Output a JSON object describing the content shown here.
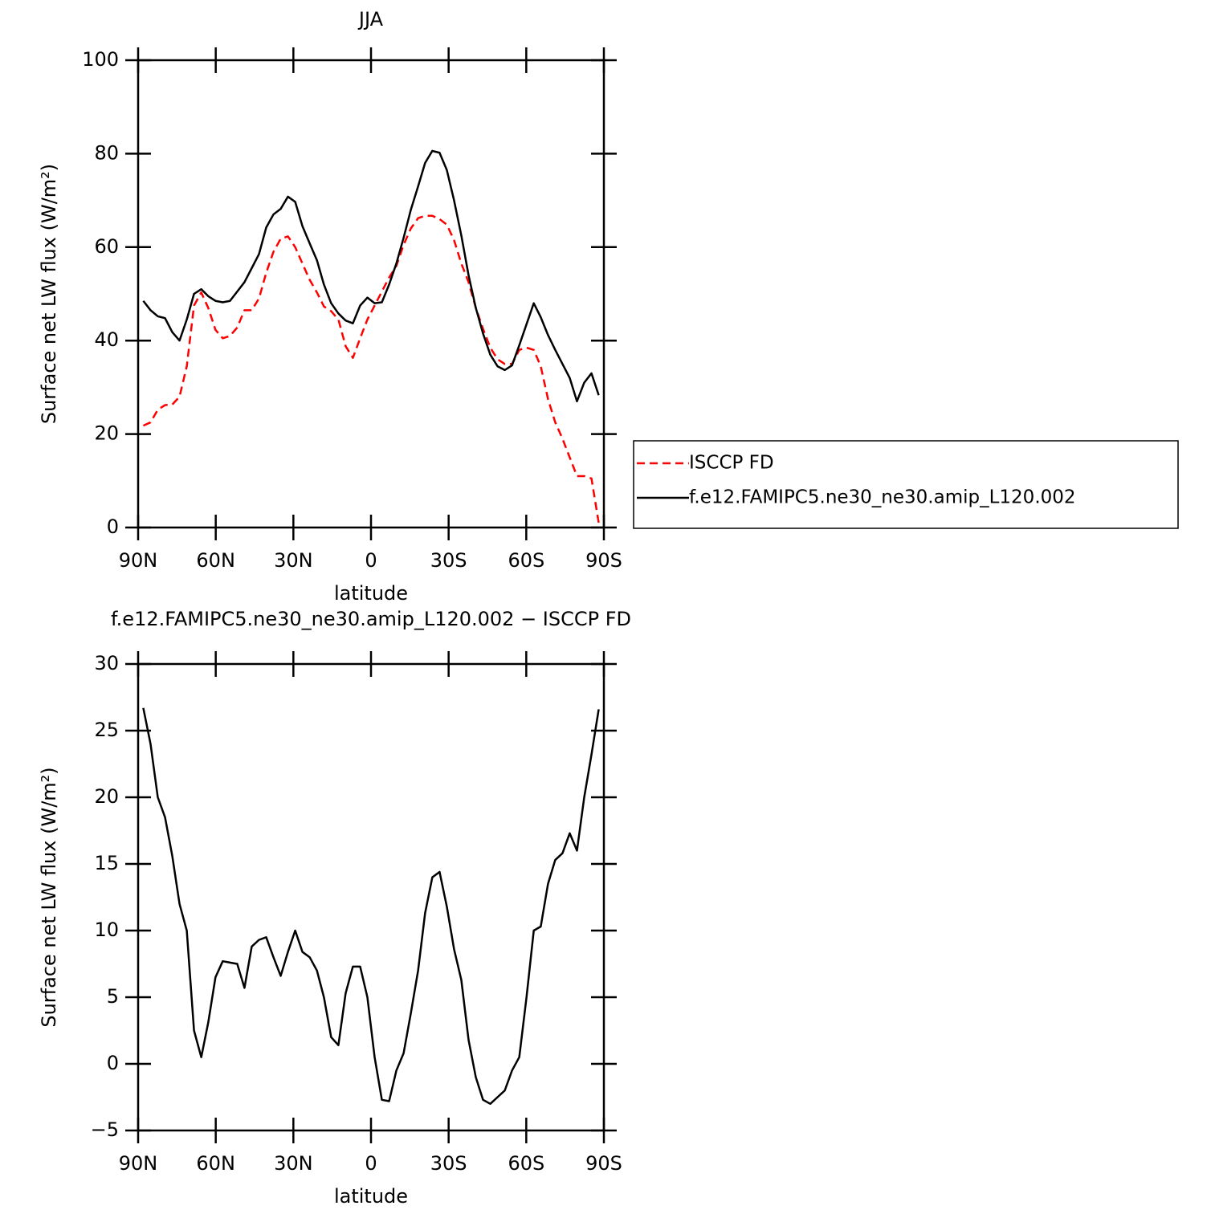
{
  "chart_data": [
    {
      "type": "line",
      "title": "JJA",
      "x_label": "latitude",
      "y_label": "Surface net LW flux (W/m²)",
      "x": [
        88.0,
        85.2,
        82.4,
        79.6,
        76.8,
        74.0,
        71.2,
        68.4,
        65.6,
        62.9,
        60.1,
        57.3,
        54.5,
        51.7,
        48.9,
        46.1,
        43.3,
        40.5,
        37.7,
        34.9,
        32.1,
        29.3,
        26.5,
        23.7,
        20.9,
        18.2,
        15.4,
        12.6,
        9.8,
        7.0,
        4.2,
        1.4,
        -1.4,
        -4.2,
        -7.0,
        -9.8,
        -12.6,
        -15.4,
        -18.2,
        -20.9,
        -23.7,
        -26.5,
        -29.3,
        -32.1,
        -34.9,
        -37.7,
        -40.5,
        -43.3,
        -46.1,
        -48.9,
        -51.7,
        -54.5,
        -57.3,
        -60.1,
        -62.9,
        -65.6,
        -68.4,
        -71.2,
        -74.0,
        -76.8,
        -79.6,
        -82.4,
        -85.2,
        -88.0
      ],
      "series": [
        {
          "name": "ISCCP FD",
          "color": "#ff0000",
          "dashed": true,
          "values": [
            21.8,
            22.5,
            25.2,
            26.2,
            26.3,
            28.0,
            34.5,
            47.5,
            50.3,
            47.0,
            42.3,
            40.5,
            41.0,
            42.8,
            46.5,
            46.5,
            49.0,
            54.5,
            59.0,
            61.8,
            62.3,
            60.0,
            56.5,
            53.0,
            50.3,
            47.3,
            46.3,
            44.5,
            38.8,
            36.3,
            40.5,
            44.5,
            47.5,
            50.5,
            53.5,
            56.0,
            60.5,
            64.0,
            66.2,
            66.7,
            66.7,
            66.0,
            64.8,
            61.5,
            56.5,
            52.5,
            47.0,
            42.5,
            38.5,
            36.0,
            35.0,
            35.0,
            38.0,
            38.5,
            38.0,
            34.5,
            27.5,
            22.5,
            19.0,
            15.0,
            11.0,
            11.0,
            10.5,
            1.0
          ]
        },
        {
          "name": "f.e12.FAMIPC5.ne30_ne30.amip_L120.002",
          "color": "#000000",
          "dashed": false,
          "values": [
            48.5,
            46.5,
            45.2,
            44.8,
            41.8,
            40.0,
            44.5,
            50.0,
            51.0,
            49.5,
            48.5,
            48.2,
            48.5,
            50.5,
            52.5,
            55.5,
            58.5,
            64.2,
            67.0,
            68.2,
            70.8,
            69.7,
            64.5,
            60.8,
            57.2,
            52.0,
            48.0,
            45.8,
            44.3,
            43.7,
            47.5,
            49.2,
            48.0,
            48.2,
            52.0,
            56.5,
            62.0,
            68.0,
            73.0,
            78.0,
            80.6,
            80.2,
            76.5,
            70.0,
            62.5,
            54.0,
            47.0,
            41.5,
            37.0,
            34.5,
            33.7,
            34.7,
            39.0,
            43.5,
            48.0,
            45.0,
            41.2,
            38.0,
            35.0,
            32.0,
            27.0,
            31.0,
            33.0,
            28.3
          ]
        }
      ],
      "xlim": [
        90,
        -90
      ],
      "xticks": [
        {
          "value": 90,
          "label": "90N"
        },
        {
          "value": 60,
          "label": "60N"
        },
        {
          "value": 30,
          "label": "30N"
        },
        0,
        {
          "value": -30,
          "label": "30S"
        },
        {
          "value": -60,
          "label": "60S"
        },
        {
          "value": -90,
          "label": "90S"
        }
      ],
      "ylim": [
        0,
        100
      ],
      "yticks": [
        0,
        20,
        40,
        60,
        80,
        100
      ],
      "legend": "right"
    },
    {
      "type": "line",
      "title": "f.e12.FAMIPC5.ne30_ne30.amip_L120.002 − ISCCP FD",
      "x_label": "latitude",
      "y_label": "Surface net LW flux (W/m²)",
      "x": [
        88.0,
        85.2,
        82.4,
        79.6,
        76.8,
        74.0,
        71.2,
        68.4,
        65.6,
        62.9,
        60.1,
        57.3,
        54.5,
        51.7,
        48.9,
        46.1,
        43.3,
        40.5,
        37.7,
        34.9,
        32.1,
        29.3,
        26.5,
        23.7,
        20.9,
        18.2,
        15.4,
        12.6,
        9.8,
        7.0,
        4.2,
        1.4,
        -1.4,
        -4.2,
        -7.0,
        -9.8,
        -12.6,
        -15.4,
        -18.2,
        -20.9,
        -23.7,
        -26.5,
        -29.3,
        -32.1,
        -34.9,
        -37.7,
        -40.5,
        -43.3,
        -46.1,
        -48.9,
        -51.7,
        -54.5,
        -57.3,
        -60.1,
        -62.9,
        -65.6,
        -68.4,
        -71.2,
        -74.0,
        -76.8,
        -79.6,
        -82.4,
        -85.2,
        -88.0
      ],
      "color": "#000000",
      "values": [
        26.7,
        24.0,
        20.0,
        18.5,
        15.6,
        12.0,
        10.0,
        2.5,
        0.5,
        3.1,
        6.5,
        7.7,
        7.6,
        7.5,
        5.7,
        8.8,
        9.3,
        9.5,
        8.0,
        6.6,
        8.4,
        10.0,
        8.4,
        8.0,
        7.0,
        5.0,
        2.0,
        1.4,
        5.3,
        7.3,
        7.3,
        5.0,
        0.5,
        -2.7,
        -2.8,
        -0.5,
        0.8,
        3.8,
        7.0,
        11.3,
        14.0,
        14.4,
        11.8,
        8.6,
        6.3,
        1.8,
        -1.0,
        -2.7,
        -3.0,
        -2.5,
        -2.0,
        -0.5,
        0.5,
        5.0,
        10.0,
        10.3,
        13.5,
        15.3,
        15.8,
        17.3,
        16.0,
        20.0,
        23.2,
        26.6
      ],
      "xlim": [
        90,
        -90
      ],
      "xticks": [
        {
          "value": 90,
          "label": "90N"
        },
        {
          "value": 60,
          "label": "60N"
        },
        {
          "value": 30,
          "label": "30N"
        },
        0,
        {
          "value": -30,
          "label": "30S"
        },
        {
          "value": -60,
          "label": "60S"
        },
        {
          "value": -90,
          "label": "90S"
        }
      ],
      "ylim": [
        -5,
        30
      ],
      "yticks": [
        {
          "value": -5,
          "label": "−5"
        },
        0,
        5,
        10,
        15,
        20,
        25,
        30
      ]
    }
  ]
}
